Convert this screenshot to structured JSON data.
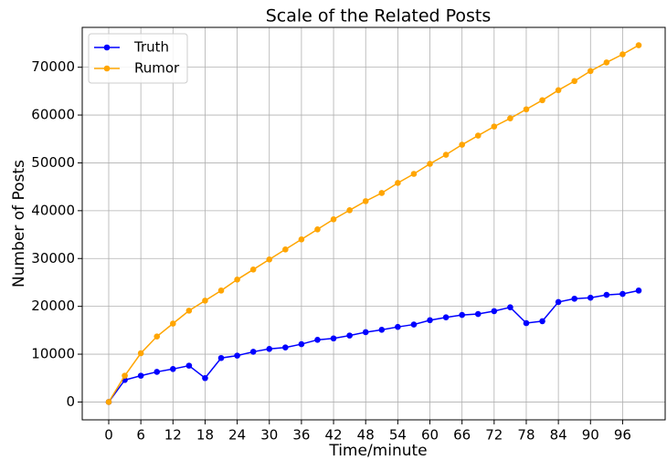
{
  "chart_data": {
    "type": "line",
    "title": "Scale of the Related Posts",
    "xlabel": "Time/minute",
    "ylabel": "Number of Posts",
    "x": [
      0,
      3,
      6,
      9,
      12,
      15,
      18,
      21,
      24,
      27,
      30,
      33,
      36,
      39,
      42,
      45,
      48,
      51,
      54,
      57,
      60,
      63,
      66,
      69,
      72,
      75,
      78,
      81,
      84,
      87,
      90,
      93,
      96,
      99
    ],
    "series": [
      {
        "name": "Truth",
        "color": "#0000ff",
        "values": [
          0,
          4600,
          5500,
          6300,
          6900,
          7600,
          5000,
          9200,
          9700,
          10500,
          11100,
          11400,
          12100,
          13000,
          13300,
          13900,
          14600,
          15100,
          15700,
          16200,
          17100,
          17700,
          18200,
          18400,
          19000,
          19800,
          16500,
          16900,
          20900,
          21600,
          21800,
          22400,
          22600,
          23300
        ]
      },
      {
        "name": "Rumor",
        "color": "#ffa500",
        "values": [
          0,
          5500,
          10200,
          13700,
          16400,
          19100,
          21200,
          23300,
          25600,
          27700,
          29800,
          31900,
          34000,
          36100,
          38200,
          40100,
          42000,
          43700,
          45800,
          47700,
          49800,
          51700,
          53800,
          55700,
          57600,
          59300,
          61200,
          63100,
          65200,
          67100,
          69200,
          71000,
          72700,
          74600
        ]
      }
    ],
    "xlim": [
      -4.95,
      103.95
    ],
    "xticks": [
      0,
      6,
      12,
      18,
      24,
      30,
      36,
      42,
      48,
      54,
      60,
      66,
      72,
      78,
      84,
      90,
      96
    ],
    "ylim": [
      -3730,
      78330
    ],
    "yticks": [
      0,
      10000,
      20000,
      30000,
      40000,
      50000,
      60000,
      70000
    ],
    "grid": true,
    "legend": "upper left"
  }
}
